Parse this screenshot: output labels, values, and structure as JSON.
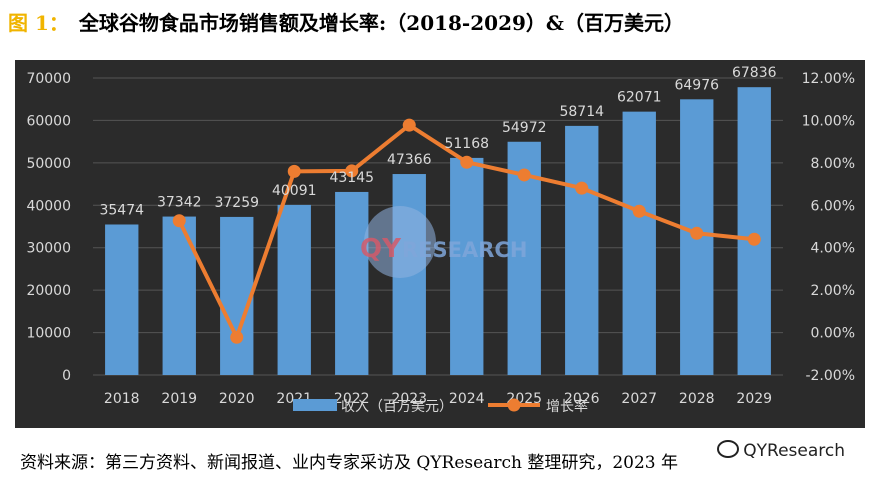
{
  "header": {
    "fig_label": "图 1：",
    "title": "全球谷物食品市场销售额及增长率:（2018-2029）&（百万美元）"
  },
  "footer": {
    "source": "资料来源：第三方资料、新闻报道、业内专家采访及 QYResearch 整理研究，2023 年",
    "watermark": "QYResearch"
  },
  "colors": {
    "background": "#2b2b2b",
    "bar": "#5b9bd5",
    "line": "#ed7d31",
    "text": "#d9d9d9"
  },
  "chart_data": {
    "type": "bar",
    "categories": [
      "2018",
      "2019",
      "2020",
      "2021",
      "2022",
      "2023",
      "2024",
      "2025",
      "2026",
      "2027",
      "2028",
      "2029"
    ],
    "series": [
      {
        "name": "收入（百万美元）",
        "type": "bar",
        "axis": "left",
        "values": [
          35474,
          37342,
          37259,
          40091,
          43145,
          47366,
          51168,
          54972,
          58714,
          62071,
          64976,
          67836
        ]
      },
      {
        "name": "增长率",
        "type": "line",
        "axis": "right",
        "values": [
          null,
          5.27,
          -0.22,
          7.6,
          7.62,
          9.78,
          8.03,
          7.43,
          6.81,
          5.72,
          4.68,
          4.4
        ]
      }
    ],
    "y_left": {
      "min": 0,
      "max": 70000,
      "ticks": [
        "0",
        "10000",
        "20000",
        "30000",
        "40000",
        "50000",
        "60000",
        "70000"
      ]
    },
    "y_right": {
      "min": -2,
      "max": 12,
      "ticks": [
        "-2.00%",
        "0.00%",
        "2.00%",
        "4.00%",
        "6.00%",
        "8.00%",
        "10.00%",
        "12.00%"
      ]
    },
    "grid": true,
    "legend": "bottom-center"
  }
}
